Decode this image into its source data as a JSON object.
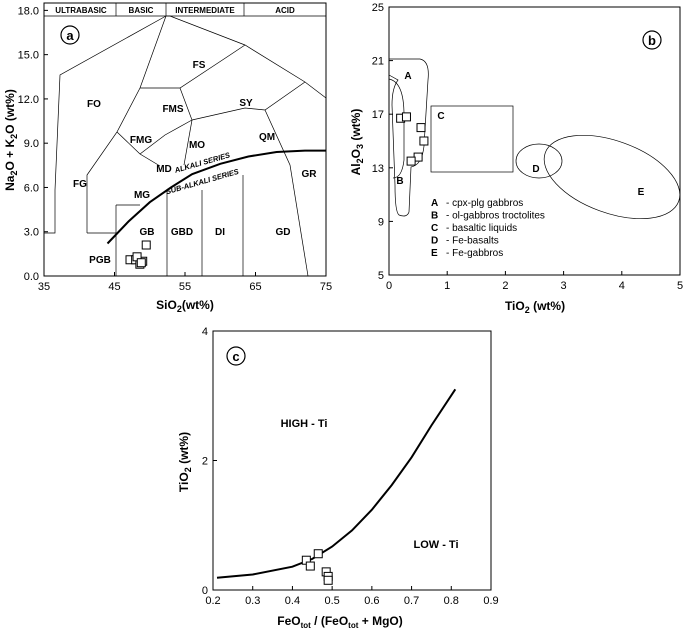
{
  "chart_data": [
    {
      "type": "scatter",
      "panel": "a",
      "xlabel": "SiO2(wt%)",
      "ylabel": "Na2O + K2O (wt%)",
      "xlim": [
        35,
        75
      ],
      "ylim": [
        0,
        18.5
      ],
      "xticks": [
        "35",
        "45",
        "55",
        "65",
        "75"
      ],
      "yticks": [
        "0.0",
        "3.0",
        "6.0",
        "9.0",
        "12.0",
        "15.0",
        "18.0"
      ],
      "header": [
        "ULTRABASIC",
        "BASIC",
        "INTERMEDIATE",
        "ACID"
      ],
      "fields": [
        "FO",
        "FS",
        "FMS",
        "SY",
        "FMG",
        "MO",
        "QM",
        "FG",
        "MD",
        "MG",
        "GR",
        "GB",
        "GBD",
        "DI",
        "GD",
        "PGB"
      ],
      "series_labels": [
        "ALKALI SERIES",
        "SUB-ALKALI SERIES"
      ],
      "boundary": {
        "x": [
          44,
          47,
          50,
          53,
          56,
          60,
          64,
          68,
          72,
          75
        ],
        "y": [
          2.2,
          3.7,
          5.0,
          6.0,
          6.9,
          7.6,
          8.1,
          8.4,
          8.5,
          8.5
        ]
      },
      "points": {
        "x": [
          49.5,
          47.2,
          48.0,
          48.6,
          49.0,
          48.2,
          48.8
        ],
        "y": [
          2.1,
          1.1,
          1.1,
          0.8,
          1.0,
          1.3,
          0.9
        ]
      }
    },
    {
      "type": "scatter",
      "panel": "b",
      "xlabel": "TiO2 (wt%)",
      "ylabel": "Al2O3 (wt%)",
      "xlim": [
        0,
        5
      ],
      "ylim": [
        5,
        25
      ],
      "xticks": [
        "0",
        "1",
        "2",
        "3",
        "4",
        "5"
      ],
      "yticks": [
        "5",
        "9",
        "13",
        "17",
        "21",
        "25"
      ],
      "field_labels": [
        "A",
        "B",
        "C",
        "D",
        "E"
      ],
      "legend": [
        {
          "key": "A",
          "text": "- cpx-plg gabbros"
        },
        {
          "key": "B",
          "text": "- ol-gabbros troctolites"
        },
        {
          "key": "C",
          "text": "- basaltic liquids"
        },
        {
          "key": "D",
          "text": "- Fe-basalts"
        },
        {
          "key": "E",
          "text": "- Fe-gabbros"
        }
      ],
      "points": {
        "x": [
          0.2,
          0.3,
          0.55,
          0.6,
          0.5,
          0.38
        ],
        "y": [
          16.7,
          16.8,
          16.0,
          15.0,
          13.8,
          13.5
        ]
      }
    },
    {
      "type": "scatter",
      "panel": "c",
      "xlabel": "FeOtot / (FeOtot + MgO)",
      "ylabel": "TiO2 (wt%)",
      "xlim": [
        0.2,
        0.9
      ],
      "ylim": [
        0,
        4
      ],
      "xticks": [
        "0.2",
        "0.3",
        "0.4",
        "0.5",
        "0.6",
        "0.7",
        "0.8",
        "0.9"
      ],
      "yticks": [
        "0",
        "2",
        "4"
      ],
      "regions": [
        "HIGH - Ti",
        "LOW - Ti"
      ],
      "curve": {
        "x": [
          0.21,
          0.3,
          0.4,
          0.45,
          0.5,
          0.55,
          0.6,
          0.65,
          0.7,
          0.75,
          0.81
        ],
        "y": [
          0.19,
          0.24,
          0.36,
          0.48,
          0.67,
          0.92,
          1.24,
          1.62,
          2.05,
          2.54,
          3.1
        ]
      },
      "points": {
        "x": [
          0.435,
          0.445,
          0.465,
          0.485,
          0.49,
          0.49
        ],
        "y": [
          0.46,
          0.37,
          0.56,
          0.28,
          0.21,
          0.15
        ]
      }
    }
  ]
}
